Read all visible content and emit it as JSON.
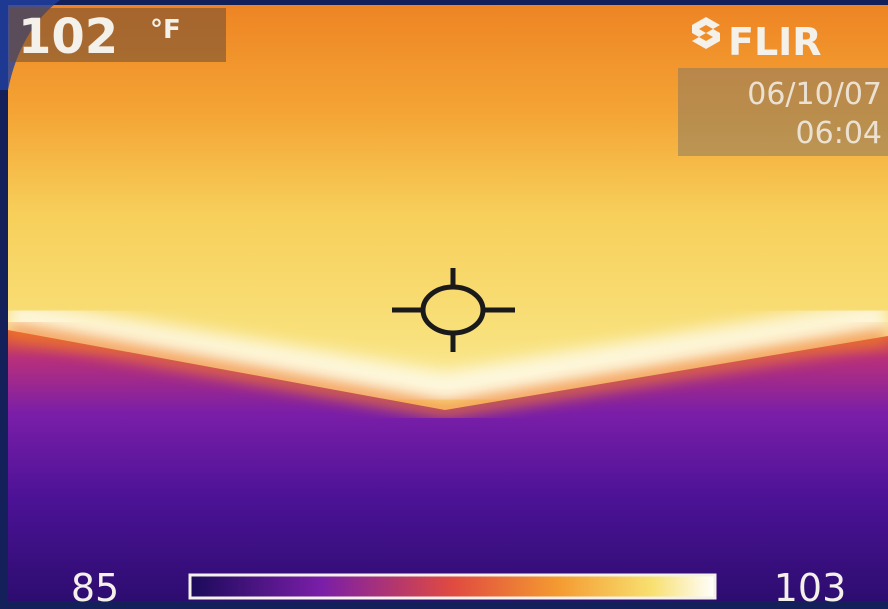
{
  "overlay": {
    "spot_temperature": "102",
    "unit": "°F",
    "brand": "FLIR",
    "date": "06/10/07",
    "time": "06:04"
  },
  "scale": {
    "min": "85",
    "max": "103"
  }
}
